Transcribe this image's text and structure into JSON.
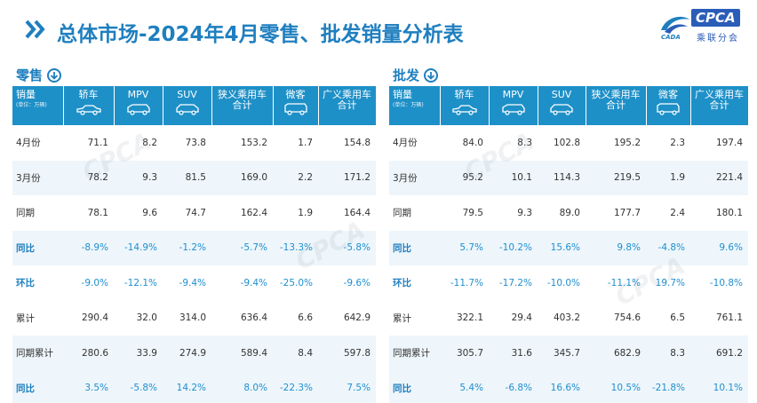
{
  "header": {
    "title": "总体市场-2024年4月零售、批发销量分析表",
    "logo_text": "CPCA",
    "logo_subtext": "乘联分会",
    "logo_small": "CADA"
  },
  "retail": {
    "section_label": "零售",
    "columns": [
      {
        "label": "销量",
        "unit": "(单位：万辆)"
      },
      {
        "label": "轿车"
      },
      {
        "label": "MPV"
      },
      {
        "label": "SUV"
      },
      {
        "label": "狭义乘用车",
        "label2": "合计"
      },
      {
        "label": "微客"
      },
      {
        "label": "广义乘用车",
        "label2": "合计"
      }
    ],
    "rows": [
      {
        "label": "4月份",
        "values": [
          "71.1",
          "8.2",
          "73.8",
          "153.2",
          "1.7",
          "154.8"
        ]
      },
      {
        "label": "3月份",
        "values": [
          "78.2",
          "9.3",
          "81.5",
          "169.0",
          "2.2",
          "171.2"
        ]
      },
      {
        "label": "同期",
        "values": [
          "78.1",
          "9.6",
          "74.7",
          "162.4",
          "1.9",
          "164.4"
        ]
      },
      {
        "label": "同比",
        "values": [
          "-8.9%",
          "-14.9%",
          "-1.2%",
          "-5.7%",
          "-13.3%",
          "-5.8%"
        ]
      },
      {
        "label": "环比",
        "values": [
          "-9.0%",
          "-12.1%",
          "-9.4%",
          "-9.4%",
          "-25.0%",
          "-9.6%"
        ]
      },
      {
        "label": "累计",
        "values": [
          "290.4",
          "32.0",
          "314.0",
          "636.4",
          "6.6",
          "642.9"
        ]
      },
      {
        "label": "同期累计",
        "values": [
          "280.6",
          "33.9",
          "274.9",
          "589.4",
          "8.4",
          "597.8"
        ]
      },
      {
        "label": "同比",
        "values": [
          "3.5%",
          "-5.8%",
          "14.2%",
          "8.0%",
          "-22.3%",
          "7.5%"
        ]
      }
    ]
  },
  "wholesale": {
    "section_label": "批发",
    "columns": [
      {
        "label": "销量",
        "unit": "(单位：万辆)"
      },
      {
        "label": "轿车"
      },
      {
        "label": "MPV"
      },
      {
        "label": "SUV"
      },
      {
        "label": "狭义乘用车",
        "label2": "合计"
      },
      {
        "label": "微客"
      },
      {
        "label": "广义乘用车",
        "label2": "合计"
      }
    ],
    "rows": [
      {
        "label": "4月份",
        "values": [
          "84.0",
          "8.3",
          "102.8",
          "195.2",
          "2.3",
          "197.4"
        ]
      },
      {
        "label": "3月份",
        "values": [
          "95.2",
          "10.1",
          "114.3",
          "219.5",
          "1.9",
          "221.4"
        ]
      },
      {
        "label": "同期",
        "values": [
          "79.5",
          "9.3",
          "89.0",
          "177.7",
          "2.4",
          "180.1"
        ]
      },
      {
        "label": "同比",
        "values": [
          "5.7%",
          "-10.2%",
          "15.6%",
          "9.8%",
          "-4.8%",
          "9.6%"
        ]
      },
      {
        "label": "环比",
        "values": [
          "-11.7%",
          "-17.2%",
          "-10.0%",
          "-11.1%",
          "19.7%",
          "-10.8%"
        ]
      },
      {
        "label": "累计",
        "values": [
          "322.1",
          "29.4",
          "403.2",
          "754.6",
          "6.5",
          "761.1"
        ]
      },
      {
        "label": "同期累计",
        "values": [
          "305.7",
          "31.6",
          "345.7",
          "682.9",
          "8.3",
          "691.2"
        ]
      },
      {
        "label": "同比",
        "values": [
          "5.4%",
          "-6.8%",
          "16.6%",
          "10.5%",
          "-21.8%",
          "10.1%"
        ]
      }
    ]
  },
  "row_styles": [
    "plain",
    "alt",
    "plain",
    "pct-alt",
    "pct",
    "plain",
    "alt",
    "pct-alt"
  ],
  "icons": {
    "section_icon": "circle-down-arrow-icon",
    "car_icons": [
      "sedan-icon",
      "mpv-icon",
      "suv-icon",
      "sedan-icon",
      "van-icon",
      "sedan-icon"
    ]
  },
  "colors": {
    "accent": "#1f7fbf",
    "header_bg": "#1e90c8",
    "alt_row": "#eef6fb",
    "pct_text": "#1f8fd0"
  }
}
